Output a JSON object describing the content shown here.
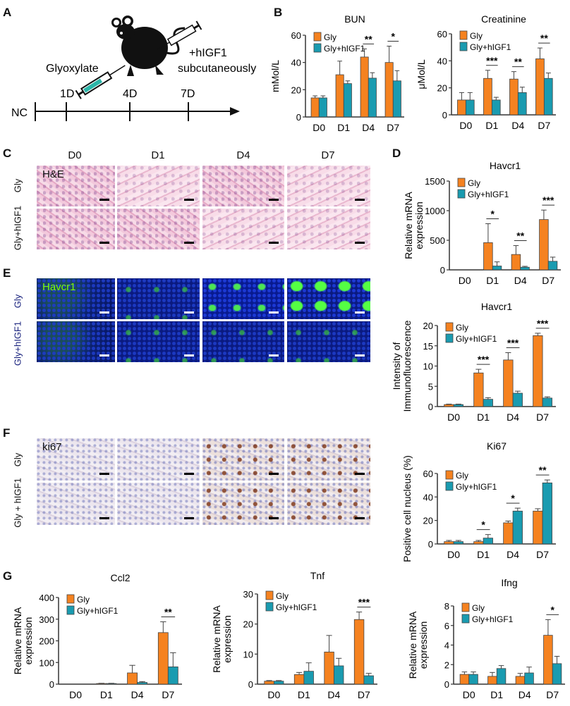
{
  "panels": {
    "A": "A",
    "B": "B",
    "C": "C",
    "D": "D",
    "E": "E",
    "F": "F",
    "G": "G"
  },
  "schematic": {
    "glyoxylate": "Glyoxylate",
    "treatment_line1": "+hIGF1",
    "treatment_line2": "subcutaneously",
    "start": "NC",
    "timepoints": [
      "1D",
      "4D",
      "7D"
    ],
    "icons": [
      "mouse-icon",
      "syringe-icon",
      "syringe-icon",
      "timeline-arrow"
    ]
  },
  "image_panels": {
    "columns": [
      "D0",
      "D1",
      "D4",
      "D7"
    ],
    "C": {
      "stain": "H&E",
      "rows": [
        "Gly",
        "Gly+hIGF1"
      ]
    },
    "E": {
      "stain": "Havcr1",
      "stain_color": "#7CFC00",
      "rows": [
        "Gly",
        "Gly+hIGF1"
      ],
      "row_color": "#1a237e"
    },
    "F": {
      "stain": "ki67",
      "rows": [
        "Gly",
        "Gly + hIGF1"
      ]
    }
  },
  "colors": {
    "gly": "#F58220",
    "gly_higf1": "#1A9BB0"
  },
  "chart_data": [
    {
      "id": "bun",
      "type": "bar",
      "title": "BUN",
      "ylabel": [
        "mMol/L"
      ],
      "ylim": [
        0,
        60
      ],
      "yticks": [
        0,
        20,
        40,
        60
      ],
      "categories": [
        "D0",
        "D1",
        "D4",
        "D7"
      ],
      "series": [
        {
          "name": "Gly",
          "values": [
            14,
            31,
            44,
            40
          ],
          "errors": [
            1.5,
            10,
            6,
            12
          ]
        },
        {
          "name": "Gly+hIGF1",
          "values": [
            14,
            24.5,
            28.5,
            26.5
          ],
          "errors": [
            1.5,
            2,
            4,
            7.5
          ]
        }
      ],
      "significance": [
        {
          "category": "D4",
          "label": "**"
        },
        {
          "category": "D7",
          "label": "*"
        }
      ],
      "legend": "top-left"
    },
    {
      "id": "creatinine",
      "type": "bar",
      "title": "Creatinine",
      "ylabel": [
        "μMol/L"
      ],
      "ylim": [
        0,
        60
      ],
      "yticks": [
        0,
        20,
        40,
        60
      ],
      "categories": [
        "D0",
        "D1",
        "D4",
        "D7"
      ],
      "series": [
        {
          "name": "Gly",
          "values": [
            11,
            27,
            26.5,
            41.5
          ],
          "errors": [
            5.5,
            6,
            5.5,
            8
          ]
        },
        {
          "name": "Gly+hIGF1",
          "values": [
            11,
            11,
            16.5,
            27
          ],
          "errors": [
            5.5,
            2,
            4,
            4
          ]
        }
      ],
      "significance": [
        {
          "category": "D1",
          "label": "***"
        },
        {
          "category": "D4",
          "label": "**"
        },
        {
          "category": "D7",
          "label": "**"
        }
      ],
      "legend": "top-left"
    },
    {
      "id": "havcr1_mrna",
      "type": "bar",
      "title": "Havcr1",
      "ylabel": [
        "Relative mRNA",
        "expression"
      ],
      "ylim": [
        0,
        1500
      ],
      "yticks": [
        0,
        500,
        1000,
        1500
      ],
      "categories": [
        "D0",
        "D1",
        "D4",
        "D7"
      ],
      "series": [
        {
          "name": "Gly",
          "values": [
            0,
            460,
            260,
            850
          ],
          "errors": [
            0,
            320,
            150,
            160
          ]
        },
        {
          "name": "Gly+hIGF1",
          "values": [
            0,
            65,
            45,
            145
          ],
          "errors": [
            0,
            70,
            15,
            70
          ]
        }
      ],
      "significance": [
        {
          "category": "D1",
          "label": "*"
        },
        {
          "category": "D4",
          "label": "**"
        },
        {
          "category": "D7",
          "label": "***"
        }
      ],
      "legend": "top-left"
    },
    {
      "id": "havcr1_if",
      "type": "bar",
      "title": "Havcr1",
      "ylabel": [
        "Intensity of",
        "Immunofluorescence"
      ],
      "ylim": [
        0,
        20
      ],
      "yticks": [
        0,
        5,
        10,
        15,
        20
      ],
      "categories": [
        "D0",
        "D1",
        "D4",
        "D7"
      ],
      "series": [
        {
          "name": "Gly",
          "values": [
            0.5,
            8.3,
            11.5,
            17.5
          ],
          "errors": [
            0.1,
            0.9,
            1.8,
            0.6
          ]
        },
        {
          "name": "Gly+hIGF1",
          "values": [
            0.5,
            1.8,
            3.3,
            2.1
          ],
          "errors": [
            0.1,
            0.4,
            0.5,
            0.3
          ]
        }
      ],
      "significance": [
        {
          "category": "D1",
          "label": "***"
        },
        {
          "category": "D4",
          "label": "***"
        },
        {
          "category": "D7",
          "label": "***"
        }
      ],
      "legend": "top-left"
    },
    {
      "id": "ki67",
      "type": "bar",
      "title": "Ki67",
      "ylabel": [
        "Positive cell nucleus (%)"
      ],
      "ylim": [
        0,
        60
      ],
      "yticks": [
        0,
        20,
        40,
        60
      ],
      "categories": [
        "D0",
        "D1",
        "D4",
        "D7"
      ],
      "series": [
        {
          "name": "Gly",
          "values": [
            2,
            2,
            18,
            28
          ],
          "errors": [
            1,
            1,
            1.5,
            2
          ]
        },
        {
          "name": "Gly+hIGF1",
          "values": [
            2,
            5,
            28,
            52
          ],
          "errors": [
            1,
            3,
            2.5,
            2.5
          ]
        }
      ],
      "significance": [
        {
          "category": "D1",
          "label": "*"
        },
        {
          "category": "D4",
          "label": "*"
        },
        {
          "category": "D7",
          "label": "**"
        }
      ],
      "legend": "top-left"
    },
    {
      "id": "ccl2",
      "type": "bar",
      "title": "Ccl2",
      "ylabel": [
        "Relative mRNA",
        "expression"
      ],
      "ylim": [
        0,
        400
      ],
      "yticks": [
        0,
        100,
        200,
        300,
        400
      ],
      "categories": [
        "D0",
        "D1",
        "D4",
        "D7"
      ],
      "series": [
        {
          "name": "Gly",
          "values": [
            0,
            3,
            52,
            238
          ],
          "errors": [
            0,
            1,
            35,
            50
          ]
        },
        {
          "name": "Gly+hIGF1",
          "values": [
            0,
            3,
            8,
            80
          ],
          "errors": [
            0,
            1,
            4,
            65
          ]
        }
      ],
      "significance": [
        {
          "category": "D7",
          "label": "**"
        }
      ],
      "legend": "top-left"
    },
    {
      "id": "tnf",
      "type": "bar",
      "title": "Tnf",
      "ylabel": [
        "Relative mRNA",
        "expression"
      ],
      "ylim": [
        0,
        30
      ],
      "yticks": [
        0,
        10,
        20,
        30
      ],
      "categories": [
        "D0",
        "D1",
        "D4",
        "D7"
      ],
      "series": [
        {
          "name": "Gly",
          "values": [
            1,
            3.2,
            10.7,
            21.5
          ],
          "errors": [
            0.2,
            0.7,
            5.5,
            2.5
          ]
        },
        {
          "name": "Gly+hIGF1",
          "values": [
            1,
            4.3,
            6.1,
            2.8
          ],
          "errors": [
            0.2,
            2.8,
            2.5,
            0.8
          ]
        }
      ],
      "significance": [
        {
          "category": "D7",
          "label": "***"
        }
      ],
      "legend": "top-left"
    },
    {
      "id": "ifng",
      "type": "bar",
      "title": "Ifng",
      "ylabel": [
        "Relative mRNA",
        "expression"
      ],
      "ylim": [
        0,
        8
      ],
      "yticks": [
        0,
        2,
        4,
        6,
        8
      ],
      "categories": [
        "D0",
        "D1",
        "D4",
        "D7"
      ],
      "series": [
        {
          "name": "Gly",
          "values": [
            1,
            0.8,
            0.8,
            5
          ],
          "errors": [
            0.25,
            0.4,
            0.3,
            1.6
          ]
        },
        {
          "name": "Gly+hIGF1",
          "values": [
            1,
            1.6,
            1.15,
            2.1
          ],
          "errors": [
            0.25,
            0.3,
            0.6,
            0.75
          ]
        }
      ],
      "significance": [
        {
          "category": "D7",
          "label": "*"
        }
      ],
      "legend": "top-left"
    }
  ]
}
